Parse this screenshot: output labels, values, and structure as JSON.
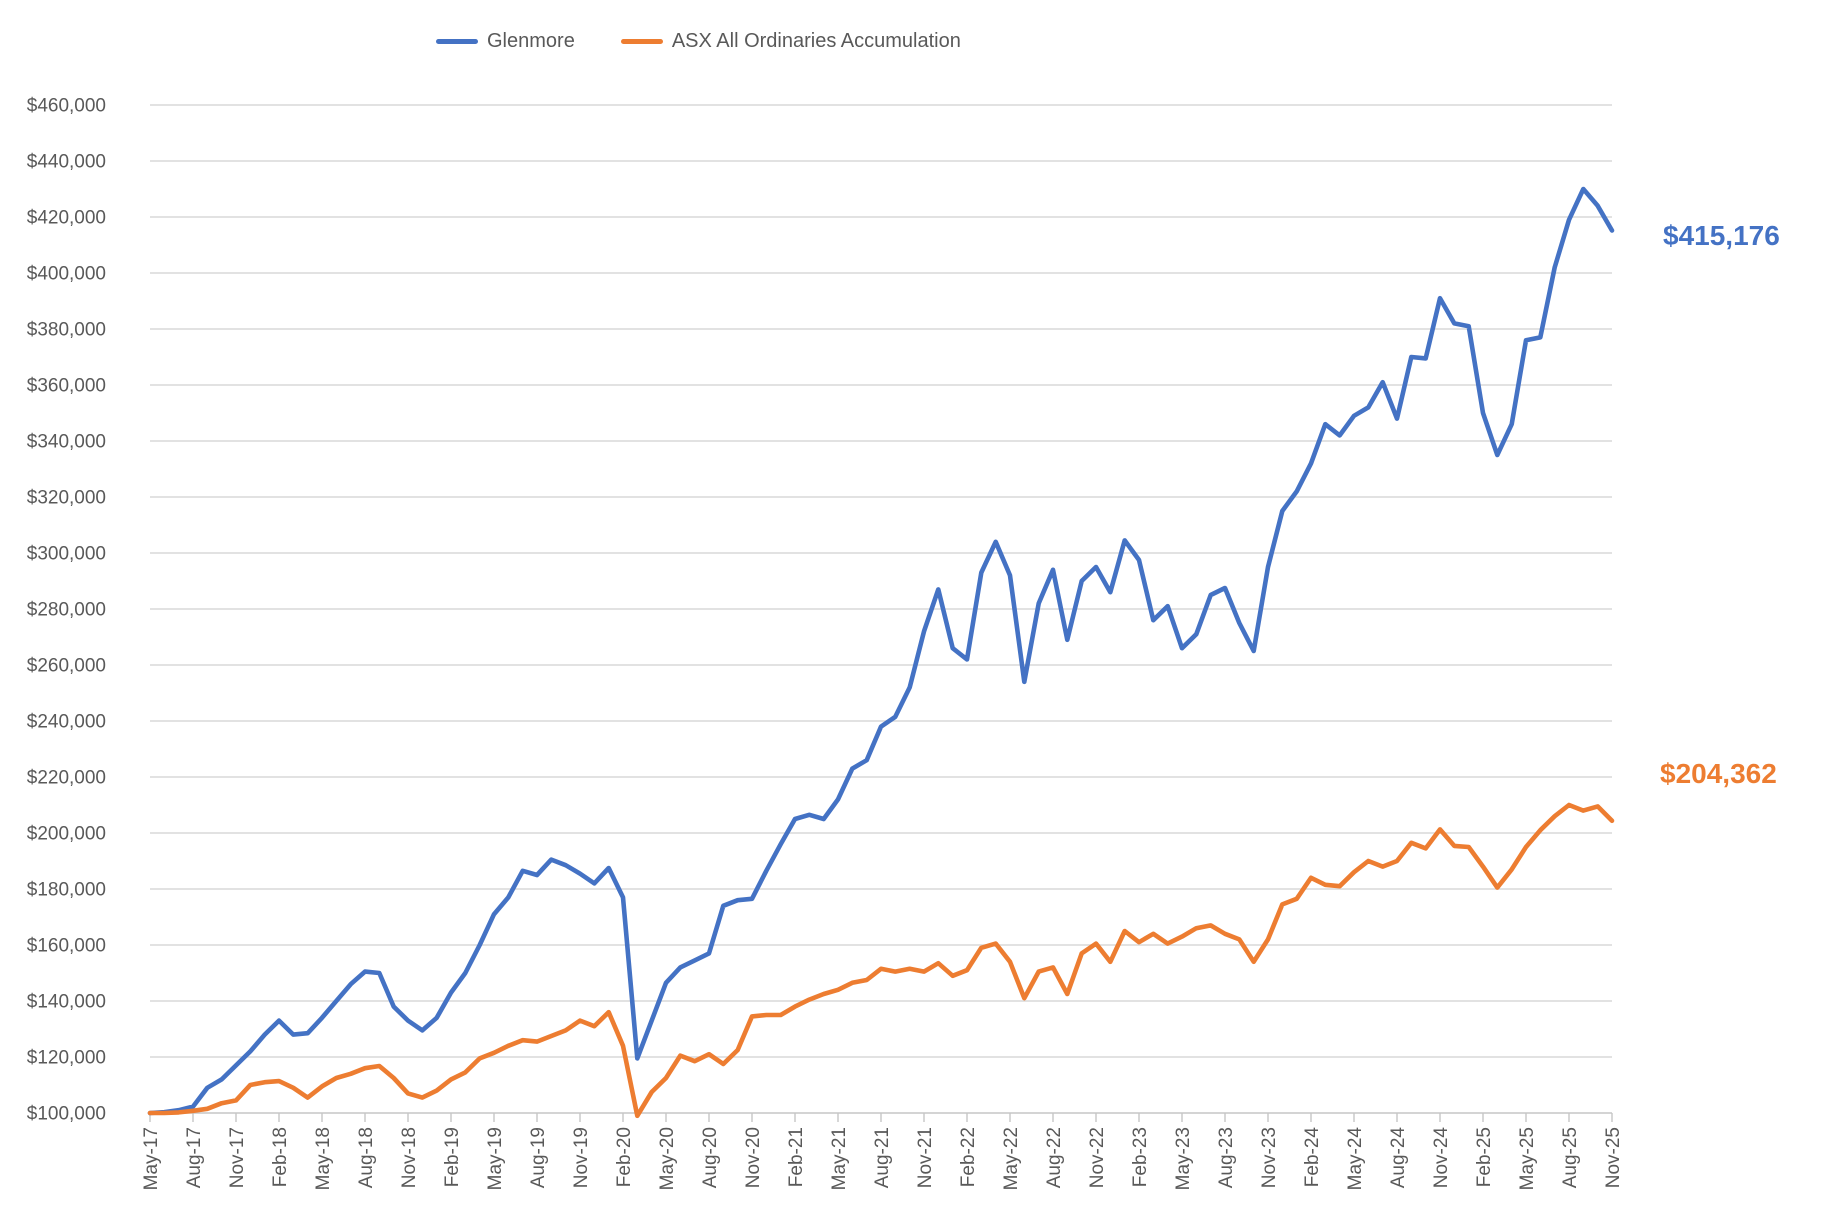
{
  "chart_data": {
    "type": "line",
    "title": "",
    "grid": true,
    "legend_position": "top",
    "x": [
      "May-17",
      "Jun-17",
      "Jul-17",
      "Aug-17",
      "Sep-17",
      "Oct-17",
      "Nov-17",
      "Dec-17",
      "Jan-18",
      "Feb-18",
      "Mar-18",
      "Apr-18",
      "May-18",
      "Jun-18",
      "Jul-18",
      "Aug-18",
      "Sep-18",
      "Oct-18",
      "Nov-18",
      "Dec-18",
      "Jan-19",
      "Feb-19",
      "Mar-19",
      "Apr-19",
      "May-19",
      "Jun-19",
      "Jul-19",
      "Aug-19",
      "Sep-19",
      "Oct-19",
      "Nov-19",
      "Dec-19",
      "Jan-20",
      "Feb-20",
      "Mar-20",
      "Apr-20",
      "May-20",
      "Jun-20",
      "Jul-20",
      "Aug-20",
      "Sep-20",
      "Oct-20",
      "Nov-20",
      "Dec-20",
      "Jan-21",
      "Feb-21",
      "Mar-21",
      "Apr-21",
      "May-21",
      "Jun-21",
      "Jul-21",
      "Aug-21",
      "Sep-21",
      "Oct-21",
      "Nov-21",
      "Dec-21",
      "Jan-22",
      "Feb-22",
      "Mar-22",
      "Apr-22",
      "May-22",
      "Jun-22",
      "Jul-22",
      "Aug-22",
      "Sep-22",
      "Oct-22",
      "Nov-22",
      "Dec-22",
      "Jan-23",
      "Feb-23",
      "Mar-23",
      "Apr-23",
      "May-23",
      "Jun-23",
      "Jul-23",
      "Aug-23",
      "Sep-23",
      "Oct-23",
      "Nov-23",
      "Dec-23",
      "Jan-24",
      "Feb-24",
      "Mar-24",
      "Apr-24",
      "May-24",
      "Jun-24",
      "Jul-24",
      "Aug-24",
      "Sep-24",
      "Oct-24",
      "Nov-24",
      "Dec-24",
      "Jan-25",
      "Feb-25",
      "Mar-25",
      "Apr-25",
      "May-25",
      "Jun-25",
      "Jul-25",
      "Aug-25",
      "Sep-25",
      "Oct-25",
      "Nov-25"
    ],
    "x_tick_labels": [
      "May-17",
      "Aug-17",
      "Nov-17",
      "Feb-18",
      "May-18",
      "Aug-18",
      "Nov-18",
      "Feb-19",
      "May-19",
      "Aug-19",
      "Nov-19",
      "Feb-20",
      "May-20",
      "Aug-20",
      "Nov-20",
      "Feb-21",
      "May-21",
      "Aug-21",
      "Nov-21",
      "Feb-22",
      "May-22",
      "Aug-22",
      "Nov-22",
      "Feb-23",
      "May-23",
      "Aug-23",
      "Nov-23",
      "Feb-24",
      "May-24",
      "Aug-24",
      "Nov-24",
      "Feb-25",
      "May-25",
      "Aug-25",
      "Nov-25"
    ],
    "x_tick_interval_months": 3,
    "y_axis": {
      "min": 100000,
      "max": 460000,
      "step": 20000,
      "tick_labels": [
        "$460,000",
        "$440,000",
        "$420,000",
        "$400,000",
        "$380,000",
        "$360,000",
        "$340,000",
        "$320,000",
        "$300,000",
        "$280,000",
        "$260,000",
        "$240,000",
        "$220,000",
        "$200,000",
        "$180,000",
        "$160,000",
        "$140,000",
        "$120,000",
        "$100,000"
      ]
    },
    "series": [
      {
        "name": "Glenmore",
        "color": "#4472C4",
        "values": [
          100000,
          100300,
          101000,
          102300,
          109000,
          112000,
          117000,
          122000,
          128000,
          133000,
          128000,
          128500,
          134000,
          140000,
          146000,
          150500,
          150000,
          138000,
          133000,
          129500,
          134000,
          143000,
          150000,
          160000,
          171000,
          177000,
          186500,
          185000,
          190500,
          188500,
          185500,
          182000,
          187500,
          177000,
          119500,
          133000,
          146500,
          152000,
          154500,
          157000,
          174000,
          176000,
          176500,
          186500,
          196000,
          205000,
          206500,
          205000,
          212000,
          223000,
          226000,
          238000,
          241500,
          252000,
          272000,
          287000,
          266000,
          262000,
          293000,
          304000,
          292000,
          254000,
          282000,
          294000,
          269000,
          290000,
          295000,
          286000,
          304500,
          297500,
          276000,
          281000,
          266000,
          271000,
          285000,
          287500,
          275000,
          265000,
          295000,
          315000,
          322000,
          332000,
          346000,
          342000,
          349000,
          352000,
          361000,
          348000,
          370000,
          369500,
          391000,
          382000,
          381000,
          350000,
          335000,
          346000,
          376000,
          377000,
          402000,
          419000,
          430000,
          424000,
          415176
        ]
      },
      {
        "name": "ASX All Ordinaries Accumulation",
        "color": "#ED7D31",
        "values": [
          100000,
          100000,
          100200,
          100800,
          101500,
          103500,
          104500,
          110000,
          111000,
          111400,
          109000,
          105500,
          109500,
          112500,
          114000,
          116000,
          116800,
          112500,
          107000,
          105500,
          108000,
          112000,
          114500,
          119500,
          121500,
          124000,
          126000,
          125500,
          127500,
          129500,
          133000,
          131000,
          136000,
          124000,
          99000,
          107500,
          112500,
          120500,
          118500,
          121000,
          117500,
          122500,
          134500,
          135000,
          135000,
          138000,
          140500,
          142500,
          144000,
          146500,
          147500,
          151500,
          150500,
          151500,
          150500,
          153500,
          149000,
          151000,
          159000,
          160500,
          154000,
          141000,
          150500,
          152000,
          142500,
          157000,
          160500,
          154000,
          165000,
          161000,
          164000,
          160500,
          163000,
          166000,
          167000,
          164000,
          162000,
          154000,
          162000,
          174500,
          176500,
          184000,
          181500,
          181000,
          186000,
          190000,
          188000,
          190000,
          196500,
          194500,
          201300,
          195400,
          195000,
          188000,
          180500,
          187000,
          195000,
          201000,
          206000,
          210000,
          208000,
          209500,
          204362
        ]
      }
    ],
    "end_labels": [
      {
        "text": "$415,176",
        "color": "#4472C4"
      },
      {
        "text": "$204,362",
        "color": "#ED7D31"
      }
    ],
    "colors": {
      "gridline": "#d9d9d9",
      "axis_line": "#c6c6c6",
      "axis_text": "#595959"
    }
  }
}
